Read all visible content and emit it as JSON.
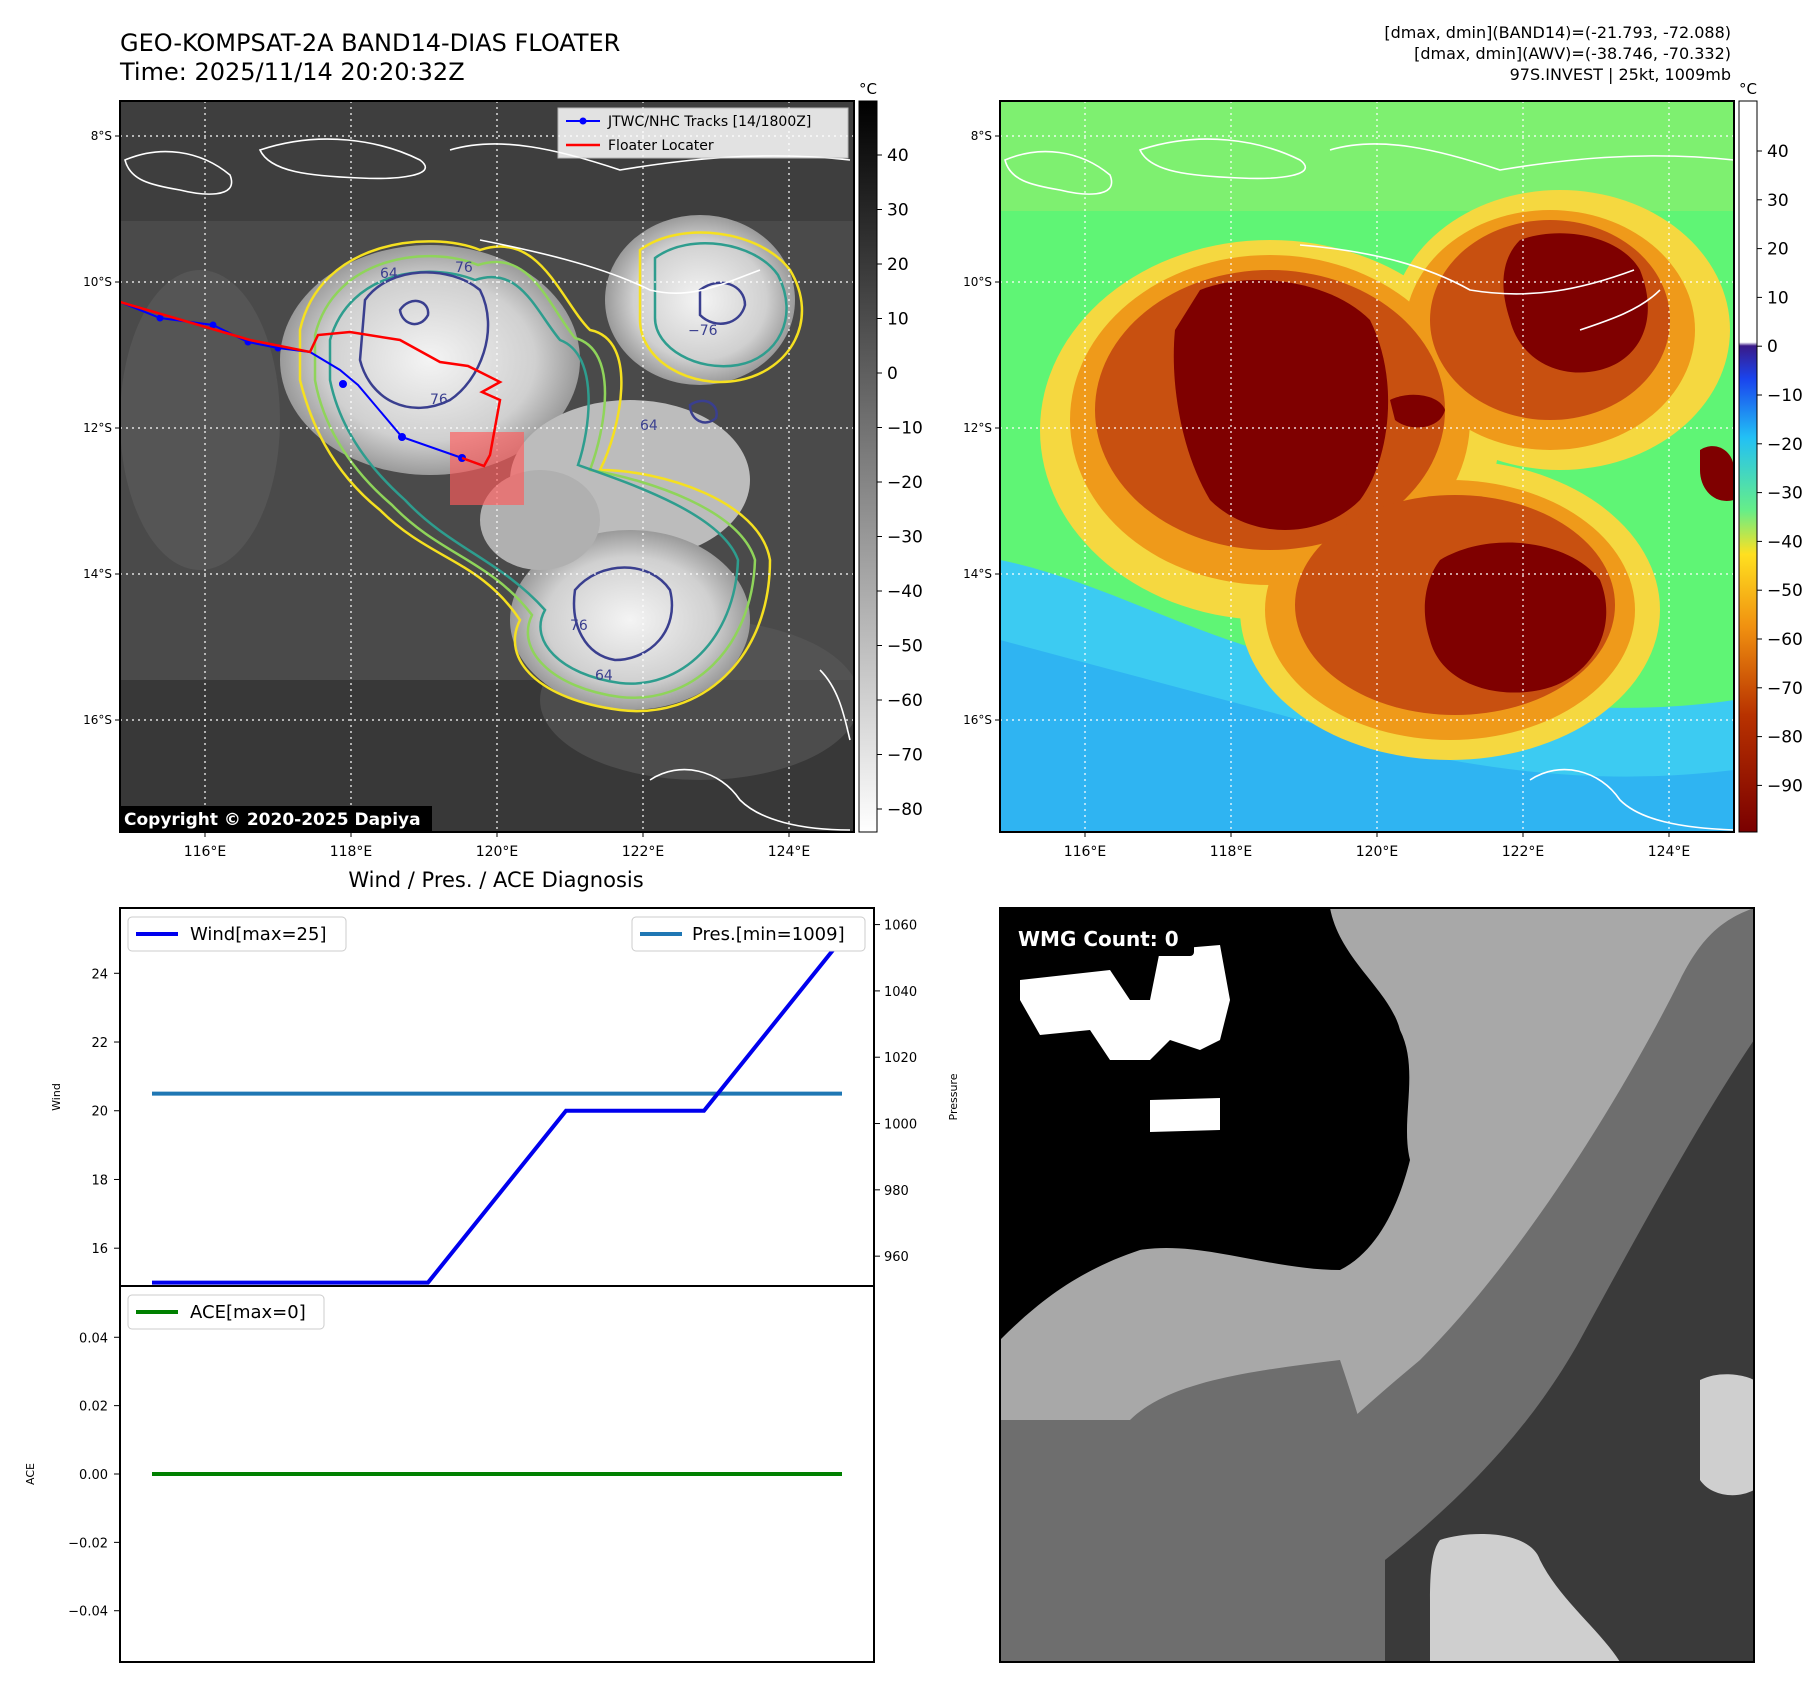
{
  "header": {
    "title_line1": "GEO-KOMPSAT-2A BAND14-DIAS FLOATER",
    "title_line2": "Time: 2025/11/14 20:20:32Z",
    "info_line1": "[dmax, dmin](BAND14)=(-21.793, -72.088)",
    "info_line2": "[dmax, dmin](AWV)=(-38.746, -70.332)",
    "info_line3": "97S.INVEST | 25kt, 1009mb"
  },
  "colors": {
    "wind": "#0000ee",
    "pressure": "#1f77b4",
    "ace": "#008000",
    "track": "#0000ff",
    "locater": "#ff0000"
  },
  "map_ir": {
    "lat_labels": [
      "8°S",
      "10°S",
      "12°S",
      "14°S",
      "16°S"
    ],
    "lon_labels": [
      "116°E",
      "118°E",
      "120°E",
      "122°E",
      "124°E"
    ],
    "legend": [
      "JTWC/NHC Tracks [14/1800Z]",
      "Floater Locater"
    ],
    "copyright": "Copyright © 2020-2025 Dapiya",
    "contour_labels": [
      "64",
      "76",
      "76",
      "−76",
      "64",
      "76",
      "64"
    ],
    "colorbar": {
      "unit": "°C",
      "ticks": [
        "40",
        "30",
        "20",
        "10",
        "0",
        "−10",
        "−20",
        "−30",
        "−40",
        "−50",
        "−60",
        "−70",
        "−80"
      ]
    }
  },
  "map_awv": {
    "lat_labels": [
      "8°S",
      "10°S",
      "12°S",
      "14°S",
      "16°S"
    ],
    "lon_labels": [
      "116°E",
      "118°E",
      "120°E",
      "122°E",
      "124°E"
    ],
    "colorbar": {
      "unit": "°C",
      "ticks": [
        "40",
        "30",
        "20",
        "10",
        "0",
        "−10",
        "−20",
        "−30",
        "−40",
        "−50",
        "−60",
        "−70",
        "−80",
        "−90"
      ]
    }
  },
  "wmg": {
    "label": "WMG Count: 0"
  },
  "chart_data": [
    {
      "type": "line",
      "title": "Wind / Pres. / ACE Diagnosis",
      "ylabel": "Wind",
      "y2label": "Pressure",
      "ylim": [
        14.9,
        25.9
      ],
      "y2lim": [
        951,
        1065
      ],
      "yticks": [
        "16",
        "18",
        "20",
        "22",
        "24"
      ],
      "y2ticks": [
        "960",
        "980",
        "1000",
        "1020",
        "1040",
        "1060"
      ],
      "series": [
        {
          "name": "Wind[max=25]",
          "x": [
            0,
            1,
            2,
            3,
            4,
            5
          ],
          "values": [
            15,
            15,
            15,
            20,
            20,
            25
          ]
        },
        {
          "name": "Pres.[min=1009]",
          "axis": "y2",
          "x": [
            0,
            5
          ],
          "values": [
            1009,
            1009
          ]
        }
      ]
    },
    {
      "type": "line",
      "ylabel": "ACE",
      "ylim": [
        -0.055,
        0.055
      ],
      "yticks": [
        "0.04",
        "0.02",
        "0.00",
        "−0.02",
        "−0.04"
      ],
      "series": [
        {
          "name": "ACE[max=0]",
          "x": [
            0,
            5
          ],
          "values": [
            0,
            0
          ]
        }
      ]
    }
  ]
}
